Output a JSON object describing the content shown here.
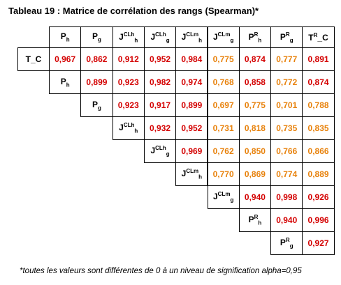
{
  "title": "Tableau 19 : Matrice de corrélation des rangs (Spearman)*",
  "table": {
    "columns": [
      {
        "base": "P",
        "sub": "h"
      },
      {
        "base": "P",
        "sub": "g"
      },
      {
        "base": "J",
        "sub": "h",
        "sup": "CLh"
      },
      {
        "base": "J",
        "sub": "g",
        "sup": "CLh"
      },
      {
        "base": "J",
        "sub": "h",
        "sup": "CLm"
      },
      {
        "base": "J",
        "sub": "g",
        "sup": "CLm"
      },
      {
        "base": "P",
        "sup": "R",
        "sub": "h"
      },
      {
        "base": "P",
        "sup": "R",
        "sub": "g"
      },
      {
        "base": "T",
        "sup": "R",
        "tail": "_C"
      }
    ],
    "rows": [
      {
        "label": {
          "base": "T_C"
        },
        "cells": [
          {
            "text": "0,967",
            "color": "#d40000"
          },
          {
            "text": "0,862",
            "color": "#d40000"
          },
          {
            "text": "0,912",
            "color": "#d40000"
          },
          {
            "text": "0,952",
            "color": "#d40000"
          },
          {
            "text": "0,984",
            "color": "#d40000"
          },
          {
            "text": "0,775",
            "color": "#e8820c"
          },
          {
            "text": "0,874",
            "color": "#d40000"
          },
          {
            "text": "0,777",
            "color": "#e8820c"
          },
          {
            "text": "0,891",
            "color": "#d40000"
          }
        ]
      },
      {
        "label": {
          "base": "P",
          "sub": "h"
        },
        "cells": [
          {
            "text": "0,899",
            "color": "#d40000"
          },
          {
            "text": "0,923",
            "color": "#d40000"
          },
          {
            "text": "0,982",
            "color": "#d40000"
          },
          {
            "text": "0,974",
            "color": "#d40000"
          },
          {
            "text": "0,768",
            "color": "#e8820c"
          },
          {
            "text": "0,858",
            "color": "#d40000"
          },
          {
            "text": "0,772",
            "color": "#e8820c"
          },
          {
            "text": "0,874",
            "color": "#d40000"
          }
        ]
      },
      {
        "label": {
          "base": "P",
          "sub": "g"
        },
        "cells": [
          {
            "text": "0,923",
            "color": "#d40000"
          },
          {
            "text": "0,917",
            "color": "#d40000"
          },
          {
            "text": "0,899",
            "color": "#d40000"
          },
          {
            "text": "0,697",
            "color": "#e8820c"
          },
          {
            "text": "0,775",
            "color": "#e8820c"
          },
          {
            "text": "0,701",
            "color": "#e8820c"
          },
          {
            "text": "0,788",
            "color": "#e8820c"
          }
        ]
      },
      {
        "label": {
          "base": "J",
          "sub": "h",
          "sup": "CLh"
        },
        "cells": [
          {
            "text": "0,932",
            "color": "#d40000"
          },
          {
            "text": "0,952",
            "color": "#d40000"
          },
          {
            "text": "0,731",
            "color": "#e8820c"
          },
          {
            "text": "0,818",
            "color": "#e8820c"
          },
          {
            "text": "0,735",
            "color": "#e8820c"
          },
          {
            "text": "0,835",
            "color": "#e8820c"
          }
        ]
      },
      {
        "label": {
          "base": "J",
          "sub": "g",
          "sup": "CLh"
        },
        "cells": [
          {
            "text": "0,969",
            "color": "#d40000"
          },
          {
            "text": "0,762",
            "color": "#e8820c"
          },
          {
            "text": "0,850",
            "color": "#e8820c"
          },
          {
            "text": "0,766",
            "color": "#e8820c"
          },
          {
            "text": "0,866",
            "color": "#e8820c"
          }
        ]
      },
      {
        "label": {
          "base": "J",
          "sub": "h",
          "sup": "CLm"
        },
        "cells": [
          {
            "text": "0,770",
            "color": "#e8820c"
          },
          {
            "text": "0,869",
            "color": "#e8820c"
          },
          {
            "text": "0,774",
            "color": "#e8820c"
          },
          {
            "text": "0,889",
            "color": "#e8820c"
          }
        ]
      },
      {
        "label": {
          "base": "J",
          "sub": "g",
          "sup": "CLm"
        },
        "cells": [
          {
            "text": "0,940",
            "color": "#d40000"
          },
          {
            "text": "0,998",
            "color": "#d40000"
          },
          {
            "text": "0,926",
            "color": "#d40000"
          }
        ]
      },
      {
        "label": {
          "base": "P",
          "sup": "R",
          "sub": "h"
        },
        "cells": [
          {
            "text": "0,940",
            "color": "#d40000"
          },
          {
            "text": "0,996",
            "color": "#d40000"
          }
        ]
      },
      {
        "label": {
          "base": "P",
          "sup": "R",
          "sub": "g"
        },
        "cells": [
          {
            "text": "0,927",
            "color": "#d40000"
          }
        ]
      }
    ]
  },
  "footnote": "*toutes les valeurs sont différentes de 0 à un niveau de signification alpha=0,95"
}
